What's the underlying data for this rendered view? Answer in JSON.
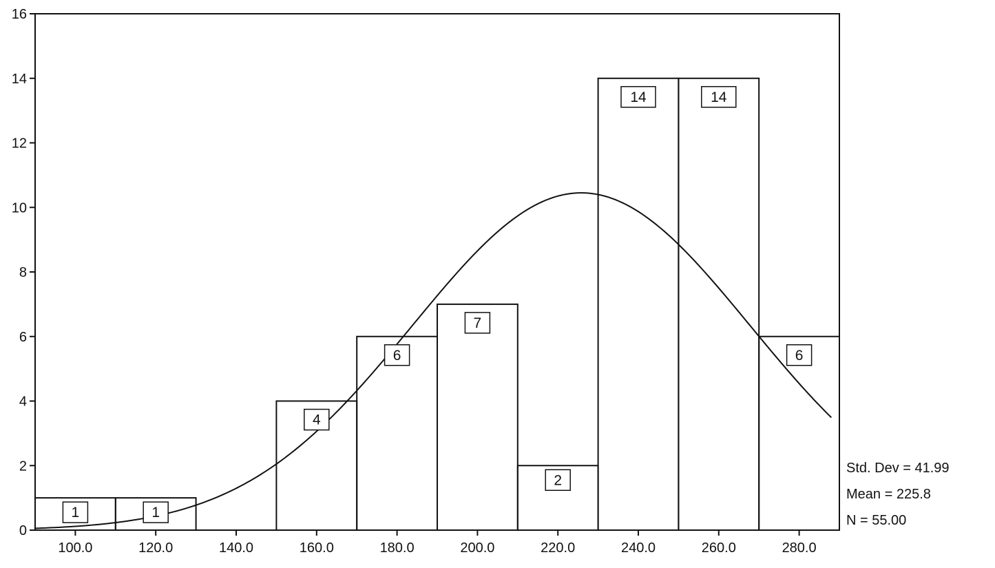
{
  "chart_data": {
    "type": "bar",
    "title": "",
    "xlabel": "",
    "ylabel": "",
    "xlim": [
      90,
      290
    ],
    "ylim": [
      0,
      16
    ],
    "bin_width": 20,
    "bins": [
      {
        "center": 100,
        "count": 1
      },
      {
        "center": 120,
        "count": 1
      },
      {
        "center": 140,
        "count": 0
      },
      {
        "center": 160,
        "count": 4
      },
      {
        "center": 180,
        "count": 6
      },
      {
        "center": 200,
        "count": 7
      },
      {
        "center": 220,
        "count": 2
      },
      {
        "center": 240,
        "count": 14
      },
      {
        "center": 260,
        "count": 14
      },
      {
        "center": 280,
        "count": 6
      }
    ],
    "x_ticks": [
      "100.0",
      "120.0",
      "140.0",
      "160.0",
      "180.0",
      "200.0",
      "220.0",
      "240.0",
      "260.0",
      "280.0"
    ],
    "x_tick_values": [
      100,
      120,
      140,
      160,
      180,
      200,
      220,
      240,
      260,
      280
    ],
    "y_ticks": [
      0,
      2,
      4,
      6,
      8,
      10,
      12,
      14,
      16
    ],
    "normal_curve": {
      "mean": 225.8,
      "std_dev": 41.99,
      "n": 55
    },
    "stats": {
      "std_dev": "Std. Dev = 41.99",
      "mean": "Mean = 225.8",
      "n": "N = 55.00"
    },
    "grid": false
  }
}
